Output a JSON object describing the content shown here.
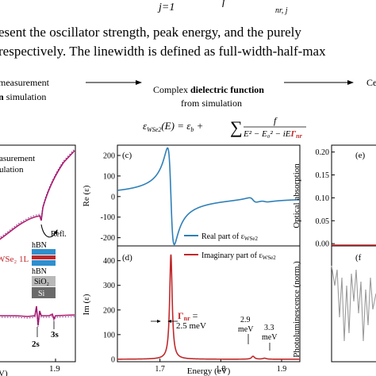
{
  "equation_top": {
    "main": "j=1",
    "frac_bar": "f",
    "subscript": "nr, j"
  },
  "body_text": {
    "line1": "esent the oscillator strength, peak energy, and the purely",
    "line2": "respectively. The linewidth is defined as full-width-half-max"
  },
  "flow": {
    "left_label_line1": "measurement",
    "left_label_line2_bold": "n",
    "left_label_line2_rest": " simulation",
    "center_title_pre": "Complex ",
    "center_title_bold": "dielectric function",
    "center_title_line2": "from simulation",
    "right_label": "Ce"
  },
  "dielectric_equation": {
    "lhs": "ε",
    "lhs_sub": "WSe2",
    "lhs_arg": "(E) = ε",
    "eb_sub": "b",
    "plus": " + ",
    "sum": "∑",
    "numerator": "f",
    "denominator_pre": "E² − E₀² − iE",
    "gamma": "Γ",
    "gamma_sub": "nr"
  },
  "left_panel": {
    "label_line1": "asurement",
    "label_line2": "ulation",
    "refl_label": "Refl.",
    "layer_hbn_top": "hBN",
    "layer_wse2": "WSe₂ 1L",
    "layer_hbn_bottom": "hBN",
    "layer_sio2": "SiO₂",
    "layer_si": "Si",
    "peak_2s": "2s",
    "peak_3s": "3s",
    "tick_19": "1.9",
    "axis_label_fragment": "V)"
  },
  "center_panel": {
    "panel_c": "(c)",
    "panel_d": "(d)",
    "ylabel_top": "Re (ε)",
    "ylabel_bottom": "Im (ε)",
    "legend_real": "Real part of ε",
    "legend_real_sub": "WSe2",
    "legend_imag": "Imaginary part of ε",
    "legend_imag_sub": "WSe2",
    "gamma_label": "Γ",
    "gamma_sub": "nr",
    "gamma_eq": " =",
    "gamma_value": "2.5 meV",
    "ann_29_val": "2.9",
    "ann_29_unit": "meV",
    "ann_33_val": "3.3",
    "ann_33_unit": "meV",
    "xlabel": "Energy (eV)",
    "xticks": [
      "1.7",
      "1.8",
      "1.9"
    ],
    "yticks_top": [
      "200",
      "100",
      "0",
      "-100",
      "-200"
    ],
    "yticks_bottom": [
      "400",
      "300",
      "200",
      "100",
      "0"
    ],
    "colors": {
      "real": "#2e7fb8",
      "imag": "#c0282a"
    }
  },
  "right_panel": {
    "panel_e": "(e)",
    "panel_f": "(f",
    "ylabel_top": "Optical absorption",
    "ylabel_bottom": "Photoluminescence (norm.)",
    "yticks": [
      "0.20",
      "0.15",
      "0.10",
      "0.05",
      "0.00"
    ]
  },
  "chart_data": [
    {
      "type": "line",
      "name_panel": "(c)",
      "ylabel": "Re (ε)",
      "xlim": [
        1.63,
        1.93
      ],
      "ylim": [
        -240,
        250
      ],
      "series": [
        {
          "name": "Real part of εWSe2",
          "peaks": [
            {
              "E0": 1.718,
              "amplitude": 235,
              "gamma_meV": 2.5
            },
            {
              "E0": 1.853,
              "amplitude": 12,
              "gamma_meV": 2.9
            },
            {
              "E0": 1.872,
              "amplitude": 4,
              "gamma_meV": 3.3
            }
          ],
          "baseline": 0
        }
      ]
    },
    {
      "type": "line",
      "name_panel": "(d)",
      "ylabel": "Im (ε)",
      "xlabel": "Energy (eV)",
      "xlim": [
        1.63,
        1.93
      ],
      "ylim": [
        -10,
        460
      ],
      "series": [
        {
          "name": "Imaginary part of εWSe2",
          "peaks": [
            {
              "E0": 1.718,
              "height": 425,
              "gamma_meV": 2.5
            },
            {
              "E0": 1.853,
              "height": 12,
              "gamma_meV": 2.9
            },
            {
              "E0": 1.872,
              "height": 4,
              "gamma_meV": 3.3
            }
          ],
          "baseline": 0
        }
      ]
    }
  ]
}
